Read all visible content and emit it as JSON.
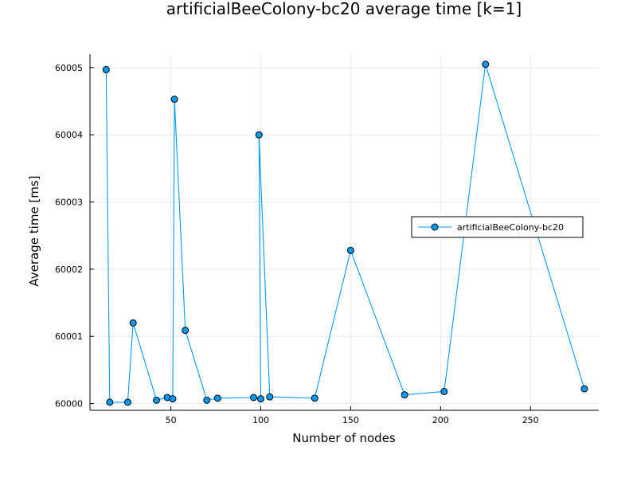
{
  "chart_data": {
    "type": "line",
    "title": "artificialBeeColony-bc20 average time [k=1]",
    "xlabel": "Number of nodes",
    "ylabel": "Average time [ms]",
    "xlim": [
      5,
      288
    ],
    "ylim": [
      59999.9,
      60005.2
    ],
    "xticks": [
      50,
      100,
      150,
      200,
      250
    ],
    "xtick_labels": [
      "50",
      "100",
      "150",
      "200",
      "250"
    ],
    "yticks": [
      60000,
      60001,
      60002,
      60003,
      60004,
      60005
    ],
    "ytick_labels": [
      "60000",
      "60001",
      "60002",
      "60003",
      "60004",
      "60005"
    ],
    "grid": true,
    "legend_position": "right",
    "series": [
      {
        "name": "artificialBeeColony-bc20",
        "color": "#009af9",
        "x": [
          14,
          16,
          26,
          29,
          42,
          48,
          51,
          52,
          58,
          70,
          76,
          96,
          100,
          99,
          105,
          130,
          150,
          180,
          202,
          225,
          280
        ],
        "y": [
          60004.97,
          60000.02,
          60000.02,
          60001.2,
          60000.05,
          60000.09,
          60000.07,
          60004.53,
          60001.09,
          60000.05,
          60000.08,
          60000.09,
          60000.07,
          60004.0,
          60000.1,
          60000.08,
          60002.28,
          60000.13,
          60000.18,
          60005.05,
          60000.22
        ]
      }
    ]
  }
}
